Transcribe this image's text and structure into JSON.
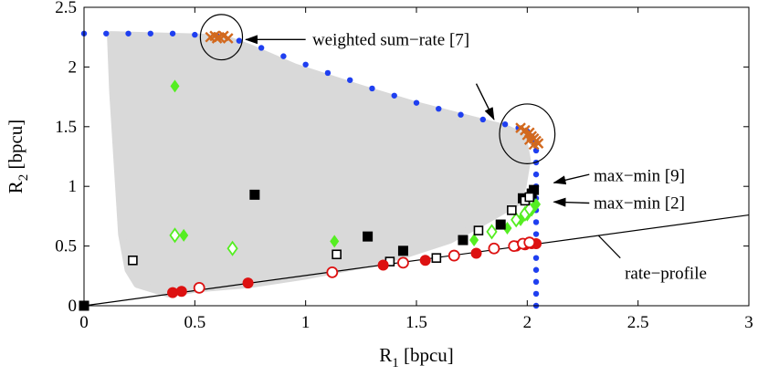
{
  "chart_data": {
    "type": "scatter",
    "xlabel": "R",
    "xlabel_sub": "1",
    "xlabel_unit": " [bpcu]",
    "ylabel": "R",
    "ylabel_sub": "2",
    "ylabel_unit": " [bpcu]",
    "xlim": [
      0,
      3
    ],
    "ylim": [
      0,
      2.5
    ],
    "xticks": [
      0,
      0.5,
      1,
      1.5,
      2,
      2.5,
      3
    ],
    "yticks": [
      0,
      0.5,
      1,
      1.5,
      2,
      2.5
    ],
    "xtick_labels": [
      "0",
      "0.5",
      "1",
      "1.5",
      "2",
      "2.5",
      "3"
    ],
    "ytick_labels": [
      "0",
      "0.5",
      "1",
      "1.5",
      "2",
      "2.5"
    ],
    "grid": false,
    "colors": {
      "region": "#d9d9d9",
      "boundary": "#1f3ff0",
      "weighted": "#d2691e",
      "green": "#55ee22",
      "black": "#000000",
      "red": "#dd1111",
      "hollow_red": "#dd1111"
    },
    "achievable_region": [
      [
        0.12,
        2.27
      ],
      [
        0.3,
        2.26
      ],
      [
        0.52,
        2.25
      ],
      [
        0.63,
        2.24
      ],
      [
        0.75,
        2.16
      ],
      [
        0.95,
        2.0
      ],
      [
        1.25,
        1.82
      ],
      [
        1.5,
        1.68
      ],
      [
        1.75,
        1.56
      ],
      [
        1.9,
        1.49
      ],
      [
        1.98,
        1.42
      ],
      [
        2.0,
        1.22
      ],
      [
        1.98,
        1.0
      ],
      [
        1.95,
        0.86
      ],
      [
        1.8,
        0.7
      ],
      [
        1.65,
        0.55
      ],
      [
        1.45,
        0.43
      ],
      [
        1.25,
        0.34
      ],
      [
        1.0,
        0.25
      ],
      [
        0.75,
        0.18
      ],
      [
        0.5,
        0.14
      ],
      [
        0.38,
        0.1
      ],
      [
        0.24,
        0.18
      ],
      [
        0.2,
        0.3
      ],
      [
        0.17,
        0.6
      ],
      [
        0.15,
        1.2
      ],
      [
        0.13,
        1.8
      ]
    ],
    "series": [
      {
        "marker": "dotted-line",
        "points": [
          [
            0,
            2.28
          ],
          [
            0.1,
            2.28
          ],
          [
            0.2,
            2.28
          ],
          [
            0.3,
            2.28
          ],
          [
            0.4,
            2.28
          ],
          [
            0.5,
            2.27
          ],
          [
            0.6,
            2.26
          ],
          [
            0.7,
            2.22
          ],
          [
            0.8,
            2.16
          ],
          [
            0.9,
            2.09
          ],
          [
            1.0,
            2.02
          ],
          [
            1.1,
            1.95
          ],
          [
            1.2,
            1.89
          ],
          [
            1.3,
            1.82
          ],
          [
            1.4,
            1.76
          ],
          [
            1.5,
            1.7
          ],
          [
            1.6,
            1.65
          ],
          [
            1.7,
            1.6
          ],
          [
            1.8,
            1.56
          ],
          [
            1.9,
            1.52
          ],
          [
            1.96,
            1.49
          ],
          [
            2.0,
            1.46
          ],
          [
            2.02,
            1.42
          ],
          [
            2.03,
            1.36
          ],
          [
            2.04,
            1.3
          ],
          [
            2.04,
            1.2
          ],
          [
            2.04,
            1.1
          ],
          [
            2.04,
            1.0
          ],
          [
            2.04,
            0.9
          ],
          [
            2.04,
            0.8
          ],
          [
            2.04,
            0.7
          ],
          [
            2.04,
            0.6
          ],
          [
            2.04,
            0.5
          ],
          [
            2.04,
            0.4
          ],
          [
            2.04,
            0.3
          ],
          [
            2.04,
            0.2
          ],
          [
            2.04,
            0.1
          ],
          [
            2.04,
            0.0
          ]
        ]
      },
      {
        "marker": "x",
        "points": [
          [
            0.57,
            2.25
          ],
          [
            0.59,
            2.26
          ],
          [
            0.61,
            2.25
          ],
          [
            0.63,
            2.26
          ],
          [
            0.65,
            2.24
          ],
          [
            0.6,
            2.24
          ],
          [
            1.97,
            1.49
          ],
          [
            1.99,
            1.47
          ],
          [
            2.01,
            1.45
          ],
          [
            2.02,
            1.42
          ],
          [
            2.03,
            1.4
          ],
          [
            2.04,
            1.38
          ],
          [
            2.05,
            1.36
          ],
          [
            2.01,
            1.39
          ],
          [
            2.0,
            1.43
          ],
          [
            2.03,
            1.35
          ]
        ]
      },
      {
        "marker": "diamond-filled",
        "points": [
          [
            0.41,
            1.84
          ],
          [
            0.45,
            0.59
          ],
          [
            1.13,
            0.54
          ],
          [
            1.76,
            0.55
          ],
          [
            1.91,
            0.65
          ],
          [
            1.97,
            0.72
          ],
          [
            2.0,
            0.76
          ],
          [
            2.02,
            0.8
          ],
          [
            2.03,
            0.83
          ],
          [
            2.04,
            0.85
          ]
        ]
      },
      {
        "marker": "diamond-hollow",
        "points": [
          [
            0.41,
            0.59
          ],
          [
            0.67,
            0.48
          ],
          [
            1.84,
            0.62
          ],
          [
            1.95,
            0.72
          ],
          [
            1.99,
            0.77
          ],
          [
            2.01,
            0.81
          ]
        ]
      },
      {
        "marker": "square-filled",
        "points": [
          [
            0.0,
            0.0
          ],
          [
            0.77,
            0.93
          ],
          [
            1.28,
            0.58
          ],
          [
            1.44,
            0.46
          ],
          [
            1.71,
            0.55
          ],
          [
            1.88,
            0.68
          ],
          [
            1.98,
            0.9
          ],
          [
            2.02,
            0.94
          ],
          [
            2.03,
            0.97
          ]
        ]
      },
      {
        "marker": "square-hollow",
        "points": [
          [
            0.22,
            0.38
          ],
          [
            1.14,
            0.43
          ],
          [
            1.38,
            0.37
          ],
          [
            1.59,
            0.4
          ],
          [
            1.78,
            0.63
          ],
          [
            1.93,
            0.8
          ],
          [
            1.99,
            0.88
          ],
          [
            2.01,
            0.91
          ]
        ]
      },
      {
        "marker": "circle-filled",
        "points": [
          [
            0.4,
            0.11
          ],
          [
            0.44,
            0.12
          ],
          [
            0.74,
            0.19
          ],
          [
            1.35,
            0.34
          ],
          [
            1.54,
            0.38
          ],
          [
            1.77,
            0.44
          ],
          [
            1.95,
            0.5
          ],
          [
            1.99,
            0.51
          ],
          [
            2.02,
            0.52
          ],
          [
            2.04,
            0.52
          ]
        ]
      },
      {
        "marker": "circle-hollow",
        "points": [
          [
            0.52,
            0.15
          ],
          [
            1.12,
            0.28
          ],
          [
            1.44,
            0.36
          ],
          [
            1.67,
            0.42
          ],
          [
            1.85,
            0.48
          ],
          [
            1.94,
            0.5
          ],
          [
            1.98,
            0.52
          ],
          [
            2.01,
            0.53
          ]
        ]
      }
    ],
    "rate_profile_line": {
      "x": [
        0,
        3
      ],
      "y": [
        0,
        0.76
      ]
    },
    "circles": [
      {
        "x": 0.62,
        "y": 2.25,
        "rx": 0.095,
        "ry": 0.19
      },
      {
        "x": 2.0,
        "y": 1.44,
        "rx": 0.125,
        "ry": 0.25
      }
    ],
    "annotations": [
      {
        "label": "weighted sum−rate [7]",
        "text_x": 1.03,
        "text_y": 2.23,
        "arrows": [
          [
            0.73,
            2.23,
            1.0,
            2.23
          ],
          [
            1.85,
            1.56,
            1.77,
            1.86
          ]
        ]
      },
      {
        "label": "max−min [9]",
        "text_x": 2.3,
        "text_y": 1.09,
        "arrows": [
          [
            2.12,
            1.03,
            2.28,
            1.1
          ]
        ]
      },
      {
        "label": "max−min [2]",
        "text_x": 2.3,
        "text_y": 0.86,
        "arrows": [
          [
            2.12,
            0.87,
            2.28,
            0.86
          ]
        ]
      },
      {
        "label": "rate−profile",
        "text_x": 2.44,
        "text_y": 0.27,
        "arrows": [
          [
            2.32,
            0.59,
            2.42,
            0.4
          ]
        ]
      }
    ]
  }
}
